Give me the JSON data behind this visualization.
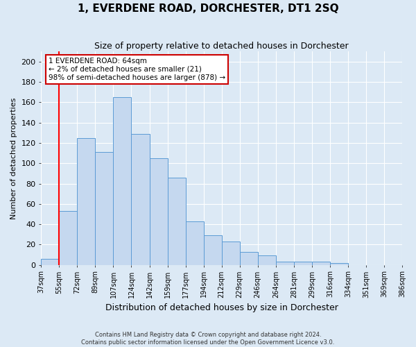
{
  "title": "1, EVERDENE ROAD, DORCHESTER, DT1 2SQ",
  "subtitle": "Size of property relative to detached houses in Dorchester",
  "xlabel": "Distribution of detached houses by size in Dorchester",
  "ylabel": "Number of detached properties",
  "bar_heights": [
    6,
    53,
    125,
    111,
    165,
    129,
    105,
    86,
    43,
    29,
    23,
    13,
    9,
    3,
    3,
    3,
    2,
    0
  ],
  "tick_labels": [
    "37sqm",
    "55sqm",
    "72sqm",
    "89sqm",
    "107sqm",
    "124sqm",
    "142sqm",
    "159sqm",
    "177sqm",
    "194sqm",
    "212sqm",
    "229sqm",
    "246sqm",
    "264sqm",
    "281sqm",
    "299sqm",
    "316sqm",
    "334sqm",
    "351sqm",
    "369sqm",
    "386sqm"
  ],
  "bar_color": "#c5d8ef",
  "bar_edge_color": "#5b9bd5",
  "marker_bin": 1,
  "marker_color": "red",
  "annotation_text": "1 EVERDENE ROAD: 64sqm\n← 2% of detached houses are smaller (21)\n98% of semi-detached houses are larger (878) →",
  "annotation_box_color": "white",
  "annotation_box_edge_color": "#cc0000",
  "ylim": [
    0,
    210
  ],
  "yticks": [
    0,
    20,
    40,
    60,
    80,
    100,
    120,
    140,
    160,
    180,
    200
  ],
  "footer_line1": "Contains HM Land Registry data © Crown copyright and database right 2024.",
  "footer_line2": "Contains public sector information licensed under the Open Government Licence v3.0.",
  "background_color": "#dce9f5",
  "plot_bg_color": "#dce9f5",
  "grid_color": "white",
  "title_fontsize": 11,
  "subtitle_fontsize": 9
}
